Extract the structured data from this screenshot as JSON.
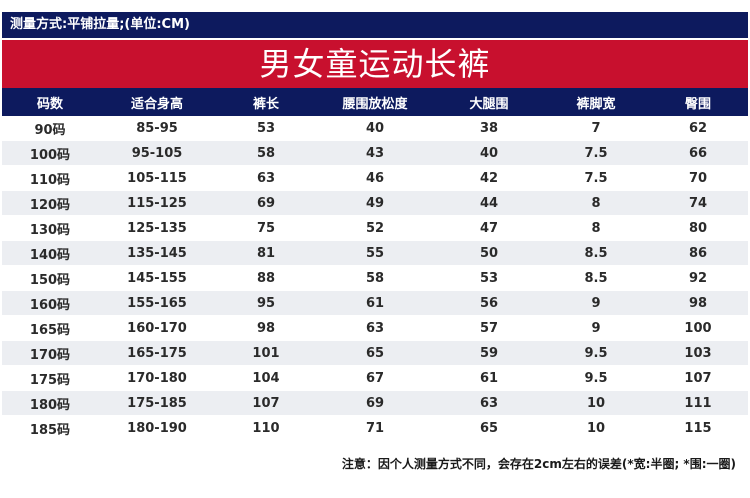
{
  "measure_method": "测量方式:平铺拉量;(单位:CM)",
  "title": "男女童运动长裤",
  "columns": [
    "码数",
    "适合身高",
    "裤长",
    "腰围放松度",
    "大腿围",
    "裤脚宽",
    "臀围"
  ],
  "rows": [
    [
      "90码",
      "85-95",
      "53",
      "40",
      "38",
      "7",
      "62"
    ],
    [
      "100码",
      "95-105",
      "58",
      "43",
      "40",
      "7.5",
      "66"
    ],
    [
      "110码",
      "105-115",
      "63",
      "46",
      "42",
      "7.5",
      "70"
    ],
    [
      "120码",
      "115-125",
      "69",
      "49",
      "44",
      "8",
      "74"
    ],
    [
      "130码",
      "125-135",
      "75",
      "52",
      "47",
      "8",
      "80"
    ],
    [
      "140码",
      "135-145",
      "81",
      "55",
      "50",
      "8.5",
      "86"
    ],
    [
      "150码",
      "145-155",
      "88",
      "58",
      "53",
      "8.5",
      "92"
    ],
    [
      "160码",
      "155-165",
      "95",
      "61",
      "56",
      "9",
      "98"
    ],
    [
      "165码",
      "160-170",
      "98",
      "63",
      "57",
      "9",
      "100"
    ],
    [
      "170码",
      "165-175",
      "101",
      "65",
      "59",
      "9.5",
      "103"
    ],
    [
      "175码",
      "170-180",
      "104",
      "67",
      "61",
      "9.5",
      "107"
    ],
    [
      "180码",
      "175-185",
      "107",
      "69",
      "63",
      "10",
      "111"
    ],
    [
      "185码",
      "180-190",
      "110",
      "71",
      "65",
      "10",
      "115"
    ]
  ],
  "note": "注意：因个人测量方式不同，会存在2cm左右的误差(*宽:半圈; *围:一圈)",
  "colors": {
    "navy": "#0d1a5e",
    "red": "#c8102e",
    "row_alt": "#eceef2"
  }
}
